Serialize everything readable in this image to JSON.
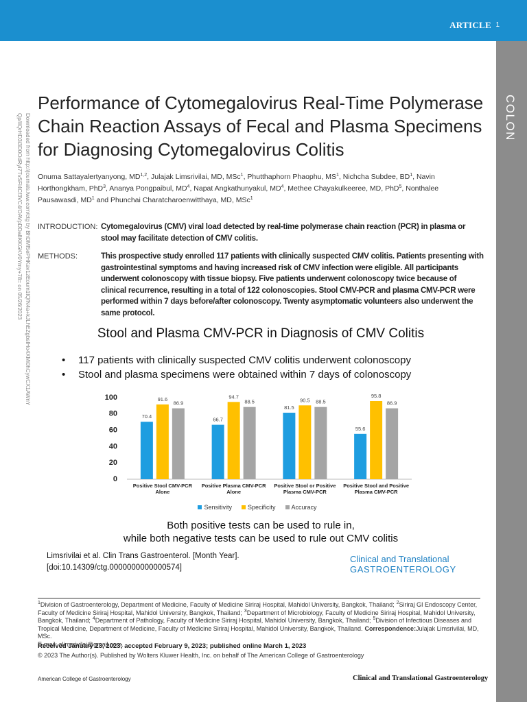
{
  "header": {
    "label": "ARTICLE",
    "page": "1",
    "section": "COLON"
  },
  "watermark": "Downloaded from http://journals.lww.com/ctg by BhDMf5ePHKav1zEoum1tQfN4a+kJLhEZgbsIHo4XMi0hCywCX1AWnYQp/IlQrHD3i3D0OdRyi7TvSFl4Cf3VC4/OAVpDDa8KKGKV0Ymy+78= on 05/26/2023",
  "title_lines": [
    "Performance of Cytomegalovirus Real-Time Polymerase",
    "Chain Reaction Assays of Fecal and Plasma Specimens",
    "for Diagnosing Cytomegalovirus Colitis"
  ],
  "authors": [
    {
      "text": "Onuma Sattayalertyanyong, MD",
      "sup": "1,2"
    },
    {
      "text": ", Julajak Limsrivilai, MD, MSc",
      "sup": "1"
    },
    {
      "text": ", Phutthaphorn Phaophu, MS",
      "sup": "1"
    },
    {
      "text": ", Nichcha Subdee, BD",
      "sup": "1"
    },
    {
      "text": ", Navin Horthongkham, PhD",
      "sup": "3"
    },
    {
      "text": ", Ananya Pongpaibul, MD",
      "sup": "4"
    },
    {
      "text": ", Napat Angkathunyakul, MD",
      "sup": "4"
    },
    {
      "text": ", Methee Chayakulkeeree, MD, PhD",
      "sup": "5"
    },
    {
      "text": ", Nonthalee Pausawasdi, MD",
      "sup": "1"
    },
    {
      "text": " and Phunchai Charatcharoenwitthaya, MD, MSc",
      "sup": "1"
    }
  ],
  "abstract": [
    {
      "label": "INTRODUCTION:",
      "text": "Cytomegalovirus (CMV) viral load detected by real-time polymerase chain reaction (PCR) in plasma or stool may facilitate detection of CMV colitis."
    },
    {
      "label": "METHODS:",
      "text": "This prospective study enrolled 117 patients with clinically suspected CMV colitis. Patients presenting with gastrointestinal symptoms and having increased risk of CMV infection were eligible. All participants underwent colonoscopy with tissue biopsy. Five patients underwent colonoscopy twice because of clinical recurrence, resulting in a total of 122 colonoscopies. Stool CMV-PCR and plasma CMV-PCR were performed within 7 days before/after colonoscopy. Twenty asymptomatic volunteers also underwent the same protocol."
    }
  ],
  "graphical_abstract": {
    "title": "Stool and Plasma CMV-PCR in Diagnosis of CMV Colitis",
    "bullet_symbol": "•",
    "bullets": [
      "117 patients with clinically suspected CMV colitis underwent colonoscopy",
      "Stool and plasma specimens were obtained within 7 days of colonoscopy"
    ],
    "chart_data": {
      "type": "bar",
      "categories": [
        "Positive Stool CMV-PCR Alone",
        "Positive Plasma CMV-PCR Alone",
        "Positive Stool or Positive Plasma CMV-PCR",
        "Positive Stool and Positive Plasma CMV-PCR"
      ],
      "series": [
        {
          "name": "Sensitivity",
          "color": "#1e9de0",
          "values": [
            70.4,
            66.7,
            81.5,
            55.6
          ]
        },
        {
          "name": "Specificity",
          "color": "#ffc000",
          "values": [
            91.6,
            94.7,
            90.5,
            95.8
          ]
        },
        {
          "name": "Accuracy",
          "color": "#a5a5a5",
          "values": [
            86.9,
            88.5,
            88.5,
            86.9
          ]
        }
      ],
      "ylim": [
        0,
        100
      ],
      "yticks": [
        0,
        20,
        40,
        60,
        80,
        100
      ],
      "grid": false,
      "legend": "bottom"
    },
    "conclusion_lines": [
      "Both positive tests can be used to rule in,",
      "while both negative tests can be used to rule out CMV colitis"
    ],
    "citation_lines": [
      "Limsrivilai et al. Clin Trans Gastroenterol. [Month Year].",
      "[doi:10.14309/ctg.0000000000000574]"
    ],
    "journal_logo": [
      "Clinical and Translational",
      "GASTROENTEROLOGY"
    ]
  },
  "footnote": {
    "affiliations": [
      {
        "sup": "1",
        "text": "Division of Gastroenterology, Department of Medicine, Faculty of Medicine Siriraj Hospital, Mahidol University, Bangkok, Thailand;"
      },
      {
        "sup": "2",
        "text": "Siriraj GI Endoscopy Center, Faculty of Medicine Siriraj Hospital, Mahidol University, Bangkok, Thailand;"
      },
      {
        "sup": "3",
        "text": "Department of Microbiology, Faculty of Medicine Siriraj Hospital, Mahidol University, Bangkok, Thailand;"
      },
      {
        "sup": "4",
        "text": "Department of Pathology, Faculty of Medicine Siriraj Hospital, Mahidol University, Bangkok, Thailand;"
      },
      {
        "sup": "5",
        "text": "Division of Infectious Diseases and Tropical Medicine, Department of Medicine, Faculty of Medicine Siriraj Hospital, Mahidol University, Bangkok, Thailand."
      }
    ],
    "correspondence_label": "Correspondence:",
    "correspondence": "Julajak Limsrivilai, MD, MSc.",
    "email": "E-mail: alimsrivilai@gmail.com.",
    "received": "Received January 23, 2023; accepted February 9, 2023; published online March 1, 2023",
    "copyright": "© 2023 The Author(s). Published by Wolters Kluwer Health, Inc. on behalf of The American College of Gastroenterology"
  },
  "footer": {
    "left": "American College of Gastroenterology",
    "right": "Clinical and Translational Gastroenterology"
  }
}
